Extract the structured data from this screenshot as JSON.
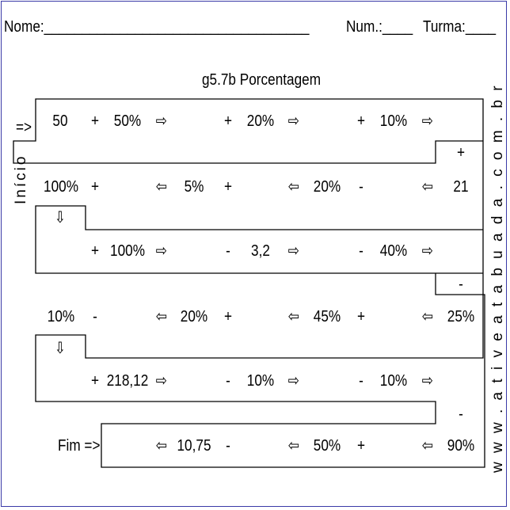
{
  "header": {
    "nome": "Nome:___________________________________",
    "num": "Num.:____",
    "turma": "Turma:____"
  },
  "title": "g5.7b Porcentagem",
  "side_left": "Início",
  "side_right": "w w w . a t i v e a t a b u a d a . c o m . b r",
  "start_arrow": "=>",
  "end_label": "Fim =>",
  "cells": {
    "r1": [
      "50",
      "+",
      "50%",
      "⇨",
      "+",
      "20%",
      "⇨",
      "+",
      "10%",
      "⇨"
    ],
    "c1": "+",
    "r2": [
      "100%",
      "+",
      "⇦",
      "5%",
      "+",
      "⇦",
      "20%",
      "-",
      "⇦",
      "21"
    ],
    "d2": "⇩",
    "r3": [
      "+",
      "100%",
      "⇨",
      "-",
      "3,2",
      "⇨",
      "-",
      "40%",
      "⇨"
    ],
    "c3": "-",
    "r4": [
      "10%",
      "-",
      "⇦",
      "20%",
      "+",
      "⇦",
      "45%",
      "+",
      "⇦",
      "25%"
    ],
    "d4": "⇩",
    "r5": [
      "+",
      "218,12",
      "⇨",
      "-",
      "10%",
      "⇨",
      "-",
      "10%",
      "⇨"
    ],
    "c5": "-",
    "r6": [
      "⇦",
      "10,75",
      "-",
      "⇦",
      "50%",
      "+",
      "⇦",
      "90%"
    ]
  }
}
